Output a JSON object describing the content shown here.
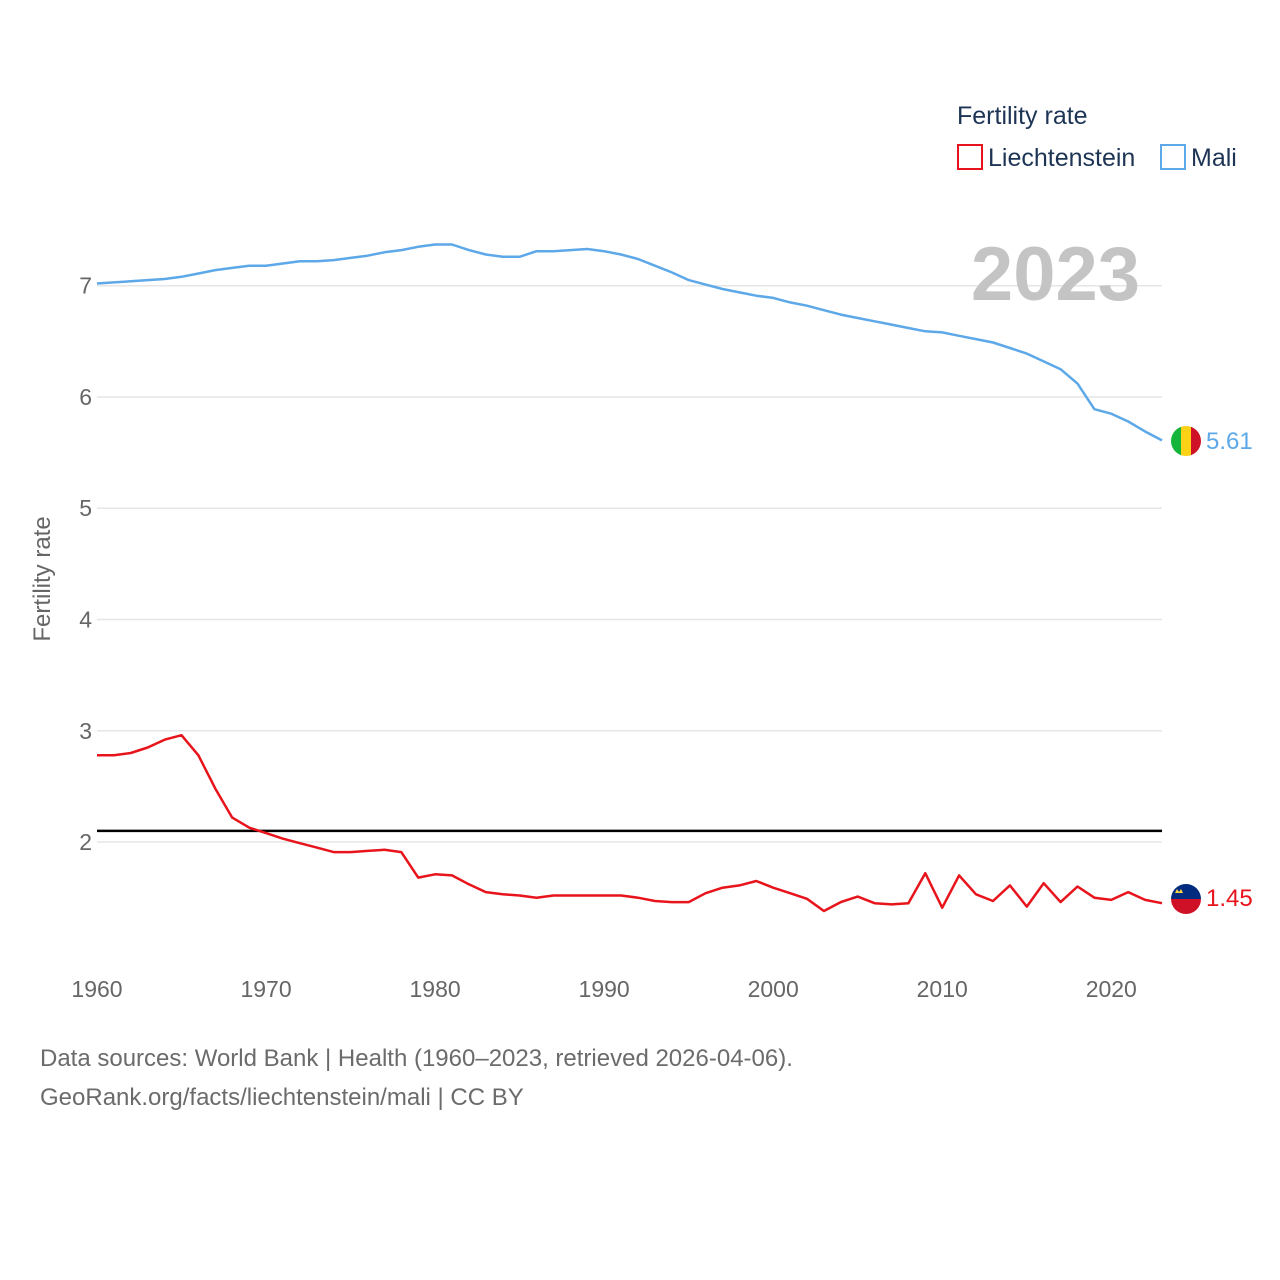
{
  "chart_data": {
    "type": "line",
    "title": "",
    "ylabel": "Fertility rate",
    "xlabel": "",
    "year_label": "2023",
    "legend": {
      "title": "Fertility rate",
      "placement": "top-right"
    },
    "xlim": [
      1960,
      2023
    ],
    "ylim": [
      0.85,
      7.95
    ],
    "x_ticks": [
      1960,
      1970,
      1980,
      1990,
      2000,
      2010,
      2020
    ],
    "y_ticks": [
      2,
      3,
      4,
      5,
      6,
      7
    ],
    "reference_line": {
      "value": 2.1,
      "color": "#000000"
    },
    "x": [
      1960,
      1961,
      1962,
      1963,
      1964,
      1965,
      1966,
      1967,
      1968,
      1969,
      1970,
      1971,
      1972,
      1973,
      1974,
      1975,
      1976,
      1977,
      1978,
      1979,
      1980,
      1981,
      1982,
      1983,
      1984,
      1985,
      1986,
      1987,
      1988,
      1989,
      1990,
      1991,
      1992,
      1993,
      1994,
      1995,
      1996,
      1997,
      1998,
      1999,
      2000,
      2001,
      2002,
      2003,
      2004,
      2005,
      2006,
      2007,
      2008,
      2009,
      2010,
      2011,
      2012,
      2013,
      2014,
      2015,
      2016,
      2017,
      2018,
      2019,
      2020,
      2021,
      2022,
      2023
    ],
    "series": [
      {
        "name": "Liechtenstein",
        "color": "#e8141c",
        "end_label": "1.45",
        "flag": "liechtenstein-flag-icon",
        "values": [
          2.78,
          2.78,
          2.8,
          2.85,
          2.92,
          2.96,
          2.78,
          2.48,
          2.22,
          2.13,
          2.08,
          2.03,
          1.99,
          1.95,
          1.91,
          1.91,
          1.92,
          1.93,
          1.91,
          1.68,
          1.71,
          1.7,
          1.62,
          1.55,
          1.53,
          1.52,
          1.5,
          1.52,
          1.52,
          1.52,
          1.52,
          1.52,
          1.5,
          1.47,
          1.46,
          1.46,
          1.54,
          1.59,
          1.61,
          1.65,
          1.59,
          1.54,
          1.49,
          1.38,
          1.46,
          1.51,
          1.45,
          1.44,
          1.45,
          1.72,
          1.41,
          1.7,
          1.53,
          1.47,
          1.61,
          1.42,
          1.63,
          1.46,
          1.6,
          1.5,
          1.48,
          1.55,
          1.48,
          1.45
        ]
      },
      {
        "name": "Mali",
        "color": "#5da8e8",
        "end_label": "5.61",
        "flag": "mali-flag-icon",
        "values": [
          7.02,
          7.03,
          7.04,
          7.05,
          7.06,
          7.08,
          7.11,
          7.14,
          7.16,
          7.18,
          7.18,
          7.2,
          7.22,
          7.22,
          7.23,
          7.25,
          7.27,
          7.3,
          7.32,
          7.35,
          7.37,
          7.37,
          7.32,
          7.28,
          7.26,
          7.26,
          7.31,
          7.31,
          7.32,
          7.33,
          7.31,
          7.28,
          7.24,
          7.18,
          7.12,
          7.05,
          7.01,
          6.97,
          6.94,
          6.91,
          6.89,
          6.85,
          6.82,
          6.78,
          6.74,
          6.71,
          6.68,
          6.65,
          6.62,
          6.59,
          6.58,
          6.55,
          6.52,
          6.49,
          6.44,
          6.39,
          6.32,
          6.25,
          6.12,
          5.89,
          5.85,
          5.78,
          5.69,
          5.61
        ]
      }
    ]
  },
  "footer": {
    "source_line": "Data sources: World Bank | Health (1960–2023, retrieved 2026-04-06).",
    "url_line": "GeoRank.org/facts/liechtenstein/mali | CC BY"
  }
}
